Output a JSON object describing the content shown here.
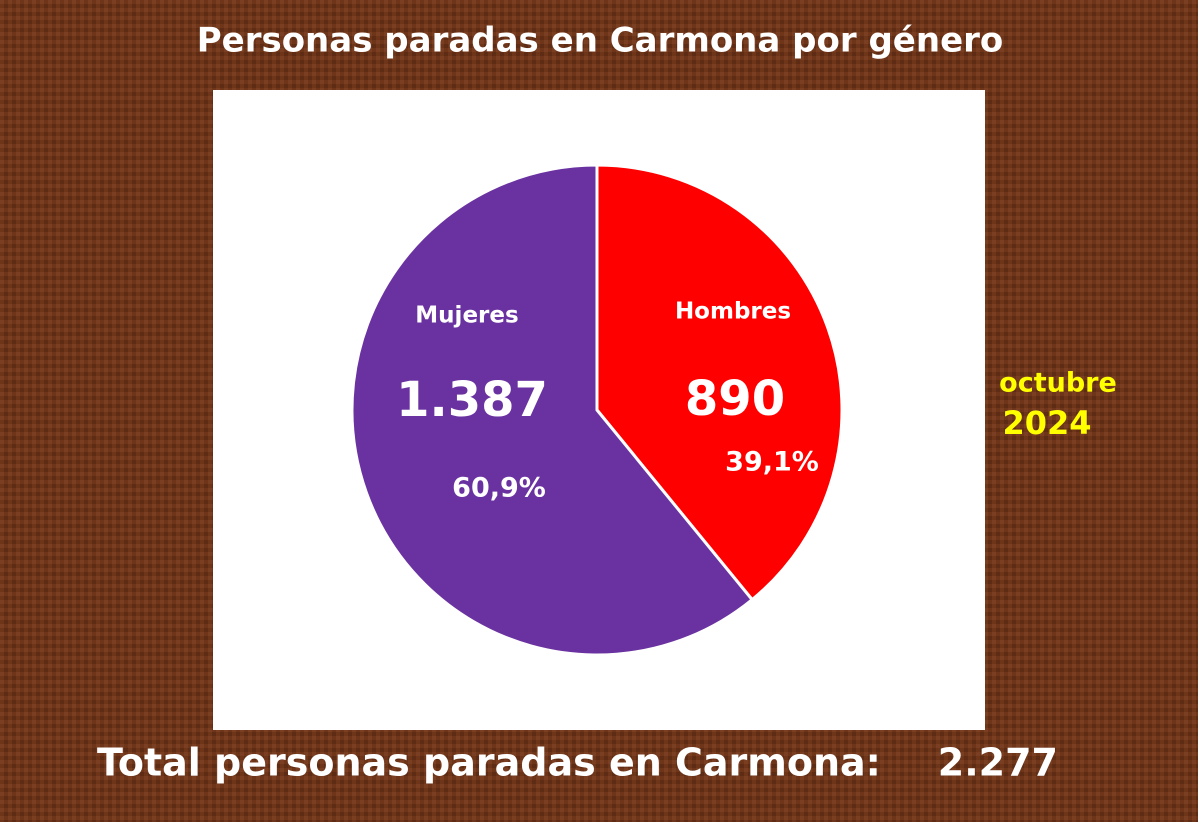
{
  "chart_data": {
    "type": "pie",
    "title": "Personas paradas en Carmona por género",
    "categories": [
      "Hombres",
      "Mujeres"
    ],
    "values": [
      890,
      1387
    ],
    "value_labels": [
      "890",
      "1.387"
    ],
    "percentages": [
      39.1,
      60.9
    ],
    "percentage_labels": [
      "39,1%",
      "60,9%"
    ],
    "colors": [
      "#ff0000",
      "#6a32a0"
    ],
    "annotation": [
      "octubre",
      "2024"
    ],
    "total_text": "Total personas paradas en Carmona:",
    "total": 2277,
    "total_label": "2.277"
  }
}
